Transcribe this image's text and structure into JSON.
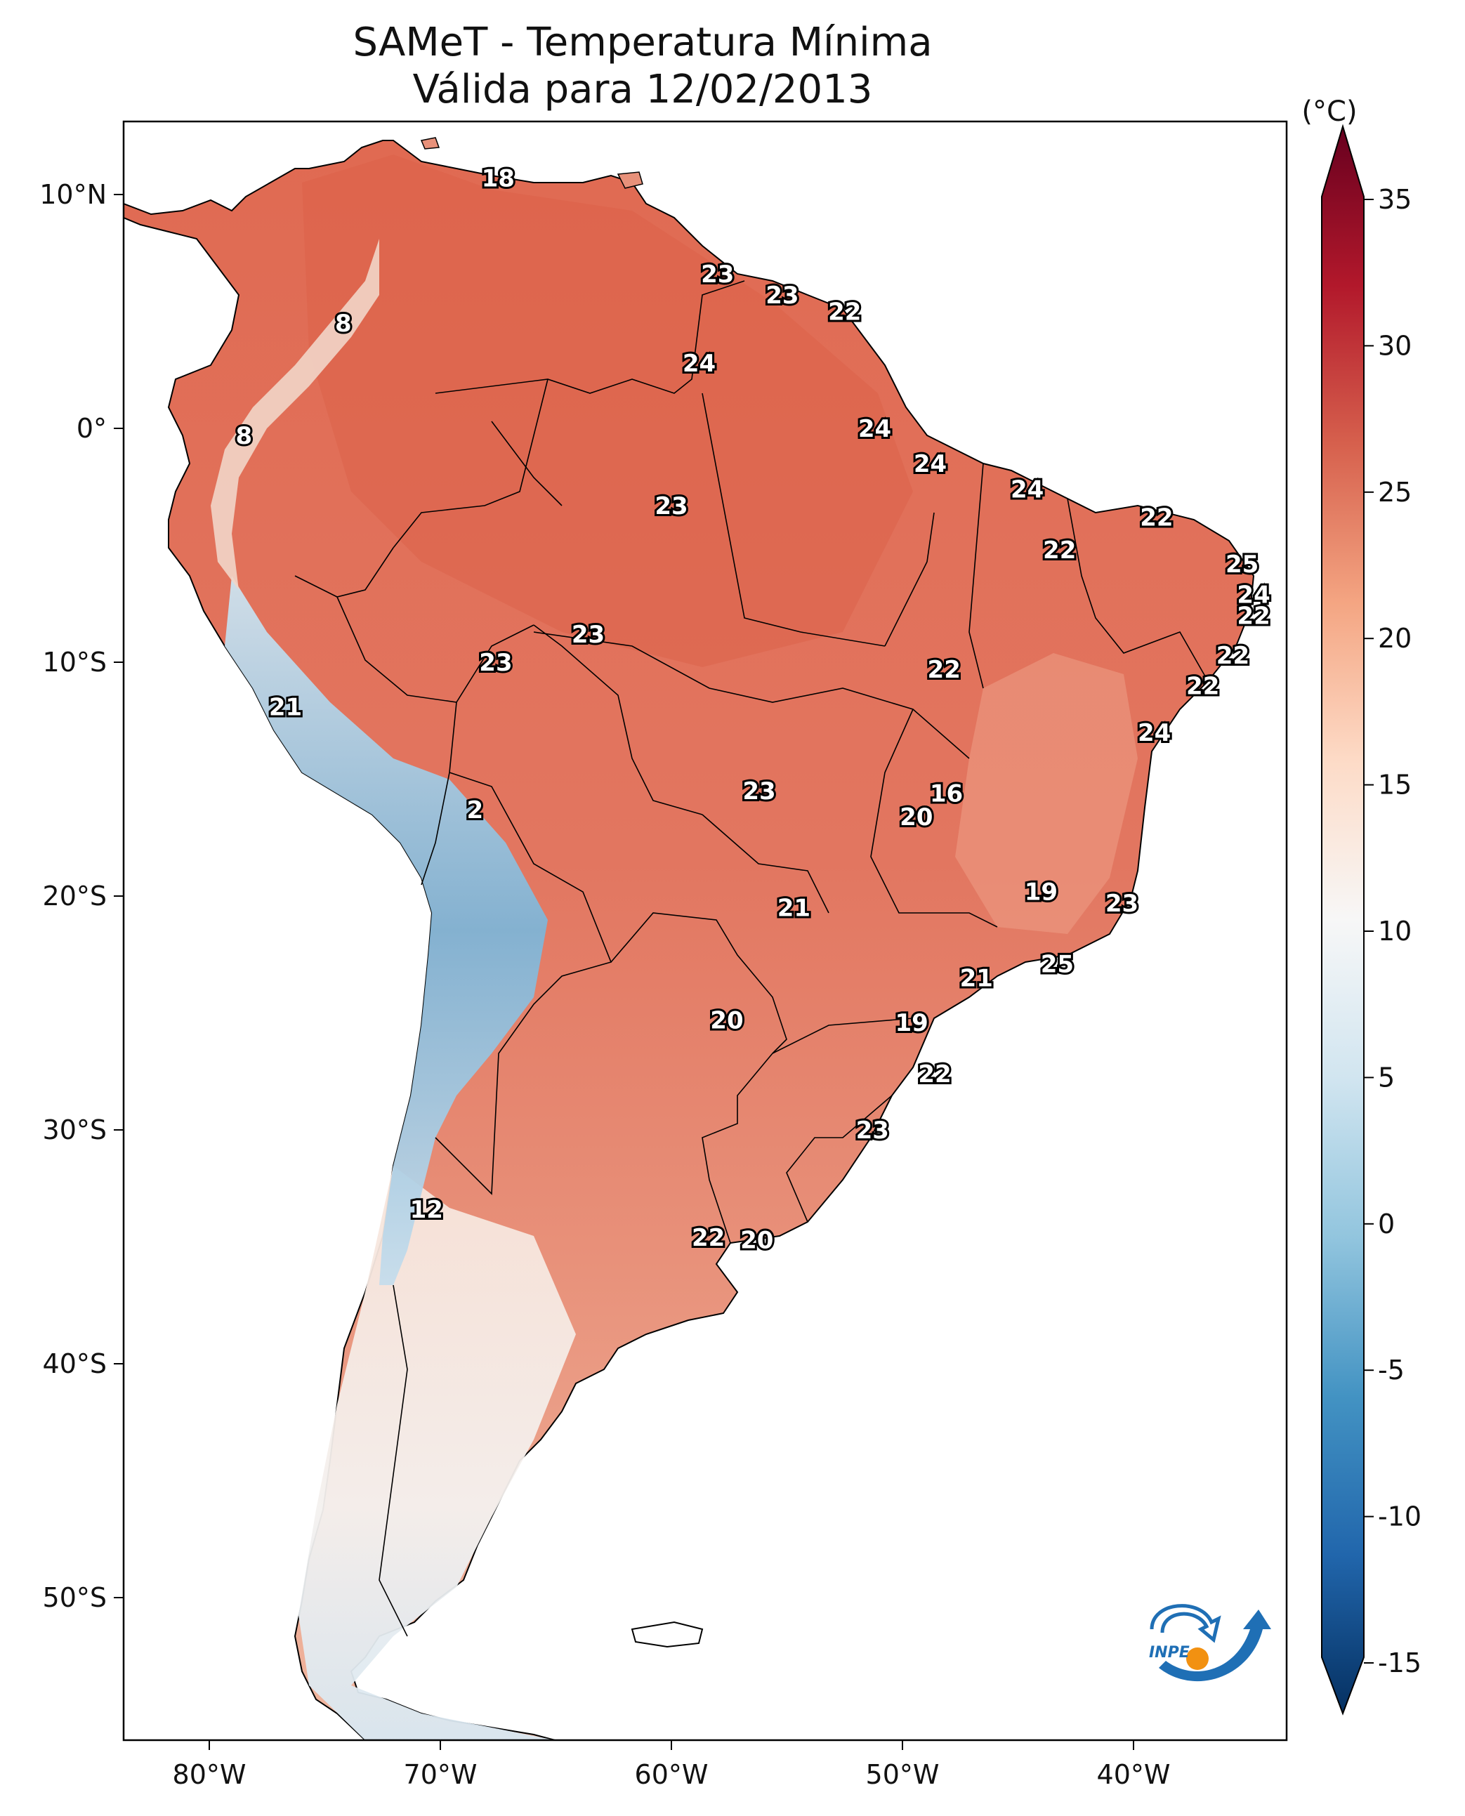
{
  "title": "SAMeT - Temperatura Mínima",
  "subtitle": "Válida para 12/02/2013",
  "unit": "(°C)",
  "colorbar": {
    "ticks": [
      "35",
      "30",
      "25",
      "20",
      "15",
      "10",
      "5",
      "0",
      "-5",
      "-10",
      "-15"
    ],
    "values": [
      35,
      30,
      25,
      20,
      15,
      10,
      5,
      0,
      -5,
      -10,
      -15
    ],
    "colors": [
      "#67001f",
      "#b2182b",
      "#d6604d",
      "#f4a582",
      "#fddbc7",
      "#f7f7f7",
      "#d1e5f0",
      "#92c5de",
      "#4393c3",
      "#2166ac",
      "#053061"
    ]
  },
  "axes": {
    "lon_ticks": [
      "80°W",
      "70°W",
      "60°W",
      "50°W",
      "40°W"
    ],
    "lat_ticks": [
      "10°N",
      "0°",
      "10°S",
      "20°S",
      "30°S",
      "40°S",
      "50°S"
    ]
  },
  "logo": "INPE",
  "station_labels": [
    {
      "text": "18",
      "lon": -67.5,
      "lat": 10.7
    },
    {
      "text": "8",
      "lon": -74.2,
      "lat": 4.5
    },
    {
      "text": "8",
      "lon": -78.5,
      "lat": -0.3
    },
    {
      "text": "23",
      "lon": -58.0,
      "lat": 6.6
    },
    {
      "text": "23",
      "lon": -55.2,
      "lat": 5.7
    },
    {
      "text": "22",
      "lon": -52.5,
      "lat": 5.0
    },
    {
      "text": "24",
      "lon": -58.8,
      "lat": 2.8
    },
    {
      "text": "24",
      "lon": -51.2,
      "lat": 0.0
    },
    {
      "text": "24",
      "lon": -48.8,
      "lat": -1.5
    },
    {
      "text": "24",
      "lon": -44.6,
      "lat": -2.6
    },
    {
      "text": "23",
      "lon": -60.0,
      "lat": -3.3
    },
    {
      "text": "22",
      "lon": -43.2,
      "lat": -5.2
    },
    {
      "text": "22",
      "lon": -39.0,
      "lat": -3.8
    },
    {
      "text": "25",
      "lon": -35.3,
      "lat": -5.8
    },
    {
      "text": "24",
      "lon": -34.8,
      "lat": -7.1
    },
    {
      "text": "22",
      "lon": -34.8,
      "lat": -8.0
    },
    {
      "text": "22",
      "lon": -35.7,
      "lat": -9.7
    },
    {
      "text": "22",
      "lon": -37.0,
      "lat": -11.0
    },
    {
      "text": "24",
      "lon": -39.1,
      "lat": -13.0
    },
    {
      "text": "22",
      "lon": -48.2,
      "lat": -10.3
    },
    {
      "text": "23",
      "lon": -63.6,
      "lat": -8.8
    },
    {
      "text": "23",
      "lon": -67.6,
      "lat": -10.0
    },
    {
      "text": "21",
      "lon": -76.7,
      "lat": -11.9
    },
    {
      "text": "2",
      "lon": -68.5,
      "lat": -16.3
    },
    {
      "text": "23",
      "lon": -56.2,
      "lat": -15.5
    },
    {
      "text": "16",
      "lon": -48.1,
      "lat": -15.6
    },
    {
      "text": "20",
      "lon": -49.4,
      "lat": -16.6
    },
    {
      "text": "19",
      "lon": -44.0,
      "lat": -19.8
    },
    {
      "text": "23",
      "lon": -40.5,
      "lat": -20.3
    },
    {
      "text": "21",
      "lon": -54.7,
      "lat": -20.5
    },
    {
      "text": "25",
      "lon": -43.3,
      "lat": -22.9
    },
    {
      "text": "21",
      "lon": -46.8,
      "lat": -23.5
    },
    {
      "text": "20",
      "lon": -57.6,
      "lat": -25.3
    },
    {
      "text": "19",
      "lon": -49.6,
      "lat": -25.4
    },
    {
      "text": "22",
      "lon": -48.6,
      "lat": -27.6
    },
    {
      "text": "23",
      "lon": -51.3,
      "lat": -30.0
    },
    {
      "text": "12",
      "lon": -70.6,
      "lat": -33.4
    },
    {
      "text": "22",
      "lon": -58.4,
      "lat": -34.6
    },
    {
      "text": "20",
      "lon": -56.3,
      "lat": -34.7
    }
  ]
}
